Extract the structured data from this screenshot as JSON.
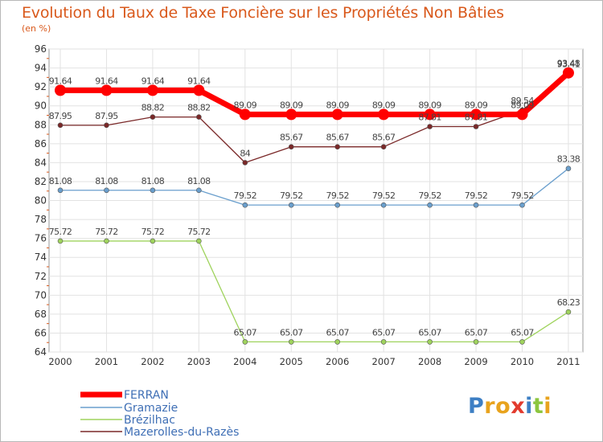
{
  "title": "Evolution du Taux de Taxe Foncière sur les Propriétés Non Bâties",
  "unit_label": "(en %)",
  "chart_data": {
    "type": "line",
    "title": "Evolution du Taux de Taxe Foncière sur les Propriétés Non Bâties",
    "ylabel": "(en %)",
    "xlabel": "",
    "ylim": [
      64,
      96
    ],
    "y_ticks": [
      64,
      66,
      68,
      70,
      72,
      74,
      76,
      78,
      80,
      82,
      84,
      86,
      88,
      90,
      92,
      94,
      96
    ],
    "x": [
      "2000",
      "2001",
      "2002",
      "2003",
      "2004",
      "2005",
      "2006",
      "2007",
      "2008",
      "2009",
      "2010",
      "2011"
    ],
    "series": [
      {
        "name": "Brézilhac",
        "color": "#9fd35d",
        "values": [
          75.72,
          75.72,
          75.72,
          75.72,
          65.07,
          65.07,
          65.07,
          65.07,
          65.07,
          65.07,
          65.07,
          68.23
        ],
        "labels": [
          "75.72",
          "75.72",
          "75.72",
          "75.72",
          "65.07",
          "65.07",
          "65.07",
          "65.07",
          "65.07",
          "65.07",
          "65.07",
          "68.23"
        ]
      },
      {
        "name": "Gramazie",
        "color": "#6a9fcd",
        "values": [
          81.08,
          81.08,
          81.08,
          81.08,
          79.52,
          79.52,
          79.52,
          79.52,
          79.52,
          79.52,
          79.52,
          83.38
        ],
        "labels": [
          "81.08",
          "81.08",
          "81.08",
          "81.08",
          "79.52",
          "79.52",
          "79.52",
          "79.52",
          "79.52",
          "79.52",
          "79.52",
          "83.38"
        ]
      },
      {
        "name": "Mazerolles-du-Razès",
        "color": "#7a2828",
        "values": [
          87.95,
          87.95,
          88.82,
          88.82,
          84,
          85.67,
          85.67,
          85.67,
          87.81,
          87.81,
          89.54,
          93.41
        ],
        "labels": [
          "87.95",
          "87.95",
          "88.82",
          "88.82",
          "84",
          "85.67",
          "85.67",
          "85.67",
          "87.81",
          "87.81",
          "89.54",
          "93.41"
        ]
      },
      {
        "name": "FERRAN",
        "color": "#ff0000",
        "values": [
          91.64,
          91.64,
          91.64,
          91.64,
          89.09,
          89.09,
          89.09,
          89.09,
          89.09,
          89.09,
          89.09,
          93.48
        ],
        "labels": [
          "91.64",
          "91.64",
          "91.64",
          "91.64",
          "89.09",
          "89.09",
          "89.09",
          "89.09",
          "89.09",
          "89.09",
          "89.09",
          "93.48"
        ]
      }
    ],
    "legend": [
      "FERRAN",
      "Gramazie",
      "Brézilhac",
      "Mazerolles-du-Razès"
    ],
    "legend_position": "bottom-left",
    "grid": true
  },
  "logo": {
    "letters": [
      "P",
      "r",
      "o",
      "x",
      "i",
      "t",
      "i"
    ]
  }
}
